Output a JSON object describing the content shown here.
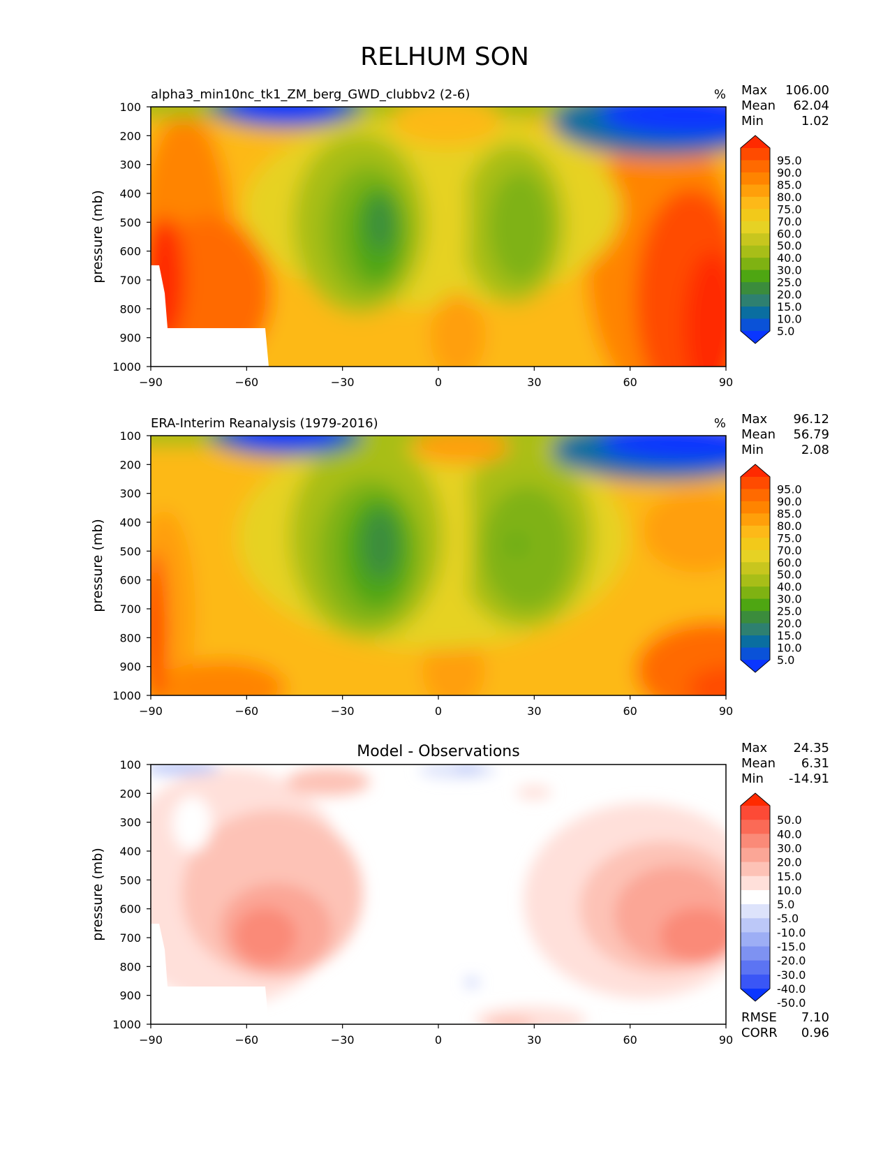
{
  "title": "RELHUM SON",
  "chart_data": [
    {
      "type": "heatmap",
      "title": "alpha3_min10nc_tk1_ZM_berg_GWD_clubbv2 (2-6)",
      "units": "%",
      "ylabel": "pressure (mb)",
      "xlabel": "",
      "xlim": [
        -90,
        90
      ],
      "ylim": [
        1000,
        100
      ],
      "xticks": [
        "−90",
        "−60",
        "−30",
        "0",
        "30",
        "60",
        "90"
      ],
      "yticks": [
        "100",
        "200",
        "300",
        "400",
        "500",
        "600",
        "700",
        "800",
        "900",
        "1000"
      ],
      "stats": [
        {
          "label": "Max",
          "value": "106.00"
        },
        {
          "label": "Mean",
          "value": "62.04"
        },
        {
          "label": "Min",
          "value": "1.02"
        }
      ],
      "colorbar": {
        "levels": [
          "95.0",
          "90.0",
          "85.0",
          "80.0",
          "75.0",
          "70.0",
          "60.0",
          "50.0",
          "40.0",
          "30.0",
          "25.0",
          "20.0",
          "15.0",
          "10.0",
          "5.0"
        ],
        "colors": [
          "#ff2a00",
          "#ff4b00",
          "#ff6a00",
          "#ff8400",
          "#ff9f0a",
          "#fdb918",
          "#f2c91a",
          "#e6d224",
          "#c8c61e",
          "#a8be18",
          "#7fb212",
          "#4ea612",
          "#3b8c3c",
          "#2e8070",
          "#0a6ea0",
          "#0a52d8",
          "#0a36ff"
        ]
      }
    },
    {
      "type": "heatmap",
      "title": "ERA-Interim Reanalysis (1979-2016)",
      "units": "%",
      "ylabel": "pressure (mb)",
      "xlabel": "",
      "xlim": [
        -90,
        90
      ],
      "ylim": [
        1000,
        100
      ],
      "xticks": [
        "−90",
        "−60",
        "−30",
        "0",
        "30",
        "60",
        "90"
      ],
      "yticks": [
        "100",
        "200",
        "300",
        "400",
        "500",
        "600",
        "700",
        "800",
        "900",
        "1000"
      ],
      "stats": [
        {
          "label": "Max",
          "value": "96.12"
        },
        {
          "label": "Mean",
          "value": "56.79"
        },
        {
          "label": "Min",
          "value": "2.08"
        }
      ],
      "colorbar": {
        "levels": [
          "95.0",
          "90.0",
          "85.0",
          "80.0",
          "75.0",
          "70.0",
          "60.0",
          "50.0",
          "40.0",
          "30.0",
          "25.0",
          "20.0",
          "15.0",
          "10.0",
          "5.0"
        ],
        "colors": [
          "#ff2a00",
          "#ff4b00",
          "#ff6a00",
          "#ff8400",
          "#ff9f0a",
          "#fdb918",
          "#f2c91a",
          "#e6d224",
          "#c8c61e",
          "#a8be18",
          "#7fb212",
          "#4ea612",
          "#3b8c3c",
          "#2e8070",
          "#0a6ea0",
          "#0a52d8",
          "#0a36ff"
        ]
      }
    },
    {
      "type": "heatmap",
      "title": "Model - Observations",
      "units": "",
      "ylabel": "pressure (mb)",
      "xlabel": "",
      "xlim": [
        -90,
        90
      ],
      "ylim": [
        1000,
        100
      ],
      "xticks": [
        "−90",
        "−60",
        "−30",
        "0",
        "30",
        "60",
        "90"
      ],
      "yticks": [
        "100",
        "200",
        "300",
        "400",
        "500",
        "600",
        "700",
        "800",
        "900",
        "1000"
      ],
      "stats": [
        {
          "label": "Max",
          "value": "24.35"
        },
        {
          "label": "Mean",
          "value": "6.31"
        },
        {
          "label": "Min",
          "value": "-14.91"
        }
      ],
      "bottom_stats": [
        {
          "label": "RMSE",
          "value": "7.10"
        },
        {
          "label": "CORR",
          "value": "0.96"
        }
      ],
      "colorbar": {
        "levels": [
          "50.0",
          "40.0",
          "30.0",
          "20.0",
          "15.0",
          "10.0",
          "5.0",
          "-5.0",
          "-10.0",
          "-15.0",
          "-20.0",
          "-30.0",
          "-40.0",
          "-50.0"
        ],
        "colors": [
          "#ff2a00",
          "#fd4a36",
          "#fb6a56",
          "#fa8a78",
          "#fba696",
          "#fdc2b6",
          "#ffe0da",
          "#ffffff",
          "#dde3fb",
          "#bcc8f8",
          "#9daef5",
          "#7e92f2",
          "#5c74f3",
          "#3a56f6",
          "#0a36ff"
        ]
      }
    }
  ]
}
